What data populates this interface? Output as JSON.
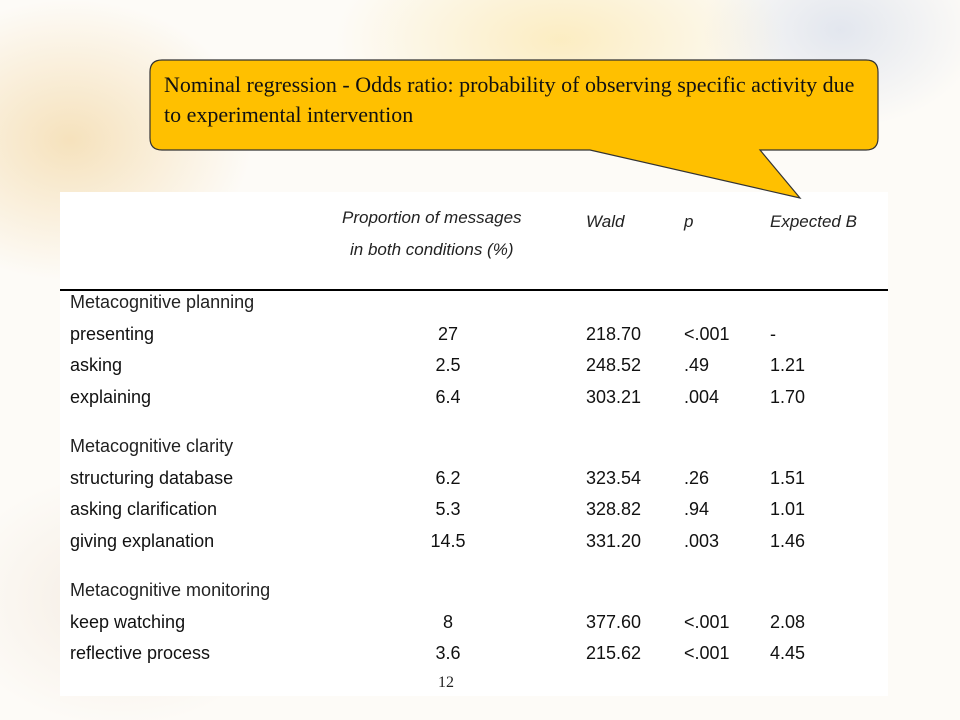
{
  "callout": {
    "text": "Nominal regression - Odds ratio: probability of observing specific activity due to experimental intervention",
    "fill_color": "#FFC000"
  },
  "table": {
    "headers": {
      "proportion_line1": "Proportion of messages",
      "proportion_line2": "in both conditions (%)",
      "wald": "Wald",
      "p": "p",
      "expected_b": "Expected B"
    },
    "sections": [
      {
        "title": "Metacognitive planning",
        "rows": [
          {
            "label": "presenting",
            "proportion": "27",
            "wald": "218.70",
            "p": "<.001",
            "expected_b": "-"
          },
          {
            "label": "asking",
            "proportion": "2.5",
            "wald": "248.52",
            "p": ".49",
            "expected_b": "1.21"
          },
          {
            "label": "explaining",
            "proportion": "6.4",
            "wald": "303.21",
            "p": ".004",
            "expected_b": "1.70"
          }
        ]
      },
      {
        "title": "Metacognitive clarity",
        "rows": [
          {
            "label": "structuring database",
            "proportion": "6.2",
            "wald": "323.54",
            "p": ".26",
            "expected_b": "1.51"
          },
          {
            "label": "asking clarification",
            "proportion": "5.3",
            "wald": "328.82",
            "p": ".94",
            "expected_b": "1.01"
          },
          {
            "label": "giving explanation",
            "proportion": "14.5",
            "wald": "331.20",
            "p": ".003",
            "expected_b": "1.46"
          }
        ]
      },
      {
        "title": "Metacognitive monitoring",
        "rows": [
          {
            "label": "keep watching",
            "proportion": "8",
            "wald": "377.60",
            "p": "<.001",
            "expected_b": "2.08"
          },
          {
            "label": "reflective process",
            "proportion": "3.6",
            "wald": "215.62",
            "p": "<.001",
            "expected_b": "4.45"
          }
        ]
      }
    ]
  },
  "page_number": "12"
}
